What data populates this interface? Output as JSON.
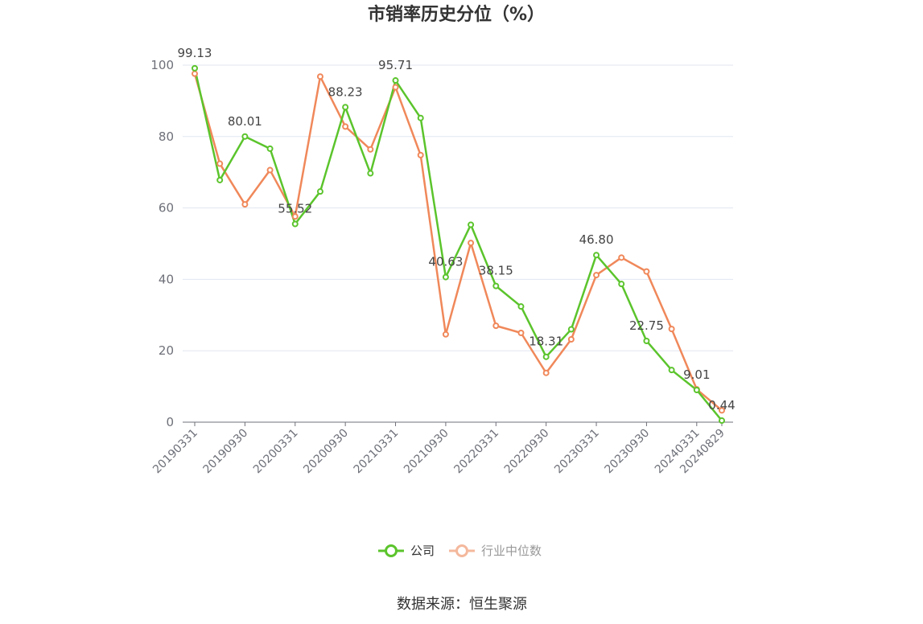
{
  "chart_data": {
    "type": "line",
    "title": "市销率历史分位（%）",
    "x_tick_labels": [
      "20190331",
      "20190930",
      "20200331",
      "20200930",
      "20210331",
      "20210930",
      "20220331",
      "20220930",
      "20230331",
      "20230930",
      "20240331",
      "20240829"
    ],
    "ylim": [
      0,
      100
    ],
    "y_ticks": [
      0,
      20,
      40,
      60,
      80,
      100
    ],
    "grid": true,
    "legend_position": "bottom-center",
    "series": [
      {
        "name": "公司",
        "color": "#5bc42c",
        "values": [
          99.13,
          67.8,
          80.01,
          76.6,
          55.52,
          64.6,
          88.23,
          69.7,
          95.71,
          85.2,
          40.63,
          55.3,
          38.15,
          32.4,
          18.31,
          26.0,
          46.8,
          38.7,
          22.75,
          14.6,
          9.01,
          0.44
        ],
        "labels": [
          "99.13",
          "",
          "80.01",
          "",
          "55.52",
          "",
          "88.23",
          "",
          "95.71",
          "",
          "40.63",
          "",
          "38.15",
          "",
          "18.31",
          "",
          "46.80",
          "",
          "22.75",
          "",
          "9.01",
          "0.44"
        ]
      },
      {
        "name": "行业中位数",
        "color": "#f0885a",
        "values": [
          97.6,
          72.4,
          61.0,
          70.6,
          57.6,
          96.8,
          82.8,
          76.4,
          93.8,
          74.8,
          24.6,
          50.2,
          27.0,
          25.0,
          13.8,
          23.2,
          41.2,
          46.1,
          42.2,
          26.1,
          9.2,
          3.3
        ]
      }
    ]
  },
  "source_text": "数据来源：恒生聚源"
}
